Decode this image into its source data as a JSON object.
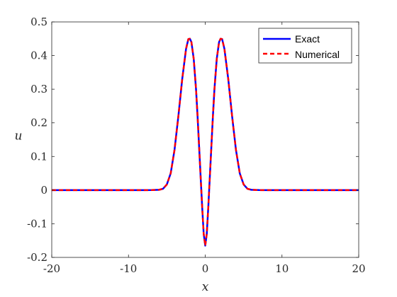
{
  "chart_data": {
    "type": "line",
    "xlabel": "x",
    "ylabel": "u",
    "xlim": [
      -20,
      20
    ],
    "ylim": [
      -0.2,
      0.5
    ],
    "xticks": [
      -20,
      -10,
      0,
      10,
      20
    ],
    "xtick_labels": [
      "-20",
      "-10",
      "0",
      "10",
      "20"
    ],
    "yticks": [
      -0.2,
      -0.1,
      0,
      0.1,
      0.2,
      0.3,
      0.4,
      0.5
    ],
    "ytick_labels": [
      "-0.2",
      "-0.1",
      "0",
      "0.1",
      "0.2",
      "0.3",
      "0.4",
      "0.5"
    ],
    "grid": false,
    "legend_position": "top-right",
    "x": [
      -20,
      -8,
      -7,
      -6,
      -5.5,
      -5,
      -4.5,
      -4,
      -3.5,
      -3,
      -2.5,
      -2.2,
      -2,
      -1.8,
      -1.5,
      -1.2,
      -1,
      -0.8,
      -0.6,
      -0.4,
      -0.2,
      0,
      0.2,
      0.4,
      0.6,
      0.8,
      1,
      1.2,
      1.5,
      1.8,
      2,
      2.2,
      2.5,
      3,
      3.5,
      4,
      4.5,
      5,
      5.5,
      6,
      7,
      8,
      20
    ],
    "series": [
      {
        "name": "Exact",
        "color": "#0000ff",
        "style": "solid",
        "values": [
          0,
          0,
          0.0001,
          0.001,
          0.004,
          0.017,
          0.05,
          0.12,
          0.22,
          0.33,
          0.42,
          0.449,
          0.45,
          0.44,
          0.39,
          0.3,
          0.22,
          0.13,
          0.04,
          -0.05,
          -0.13,
          -0.165,
          -0.13,
          -0.05,
          0.04,
          0.13,
          0.22,
          0.3,
          0.39,
          0.44,
          0.45,
          0.449,
          0.42,
          0.33,
          0.22,
          0.12,
          0.05,
          0.017,
          0.004,
          0.001,
          0.0001,
          0,
          0
        ]
      },
      {
        "name": "Numerical",
        "color": "#ff0000",
        "style": "dashed",
        "values": [
          0,
          0,
          0.0001,
          0.001,
          0.004,
          0.017,
          0.05,
          0.12,
          0.22,
          0.33,
          0.42,
          0.449,
          0.45,
          0.44,
          0.39,
          0.3,
          0.22,
          0.13,
          0.04,
          -0.05,
          -0.13,
          -0.165,
          -0.13,
          -0.05,
          0.04,
          0.13,
          0.22,
          0.3,
          0.39,
          0.44,
          0.45,
          0.449,
          0.42,
          0.33,
          0.22,
          0.12,
          0.05,
          0.017,
          0.004,
          0.001,
          0.0001,
          0,
          0
        ]
      }
    ]
  }
}
